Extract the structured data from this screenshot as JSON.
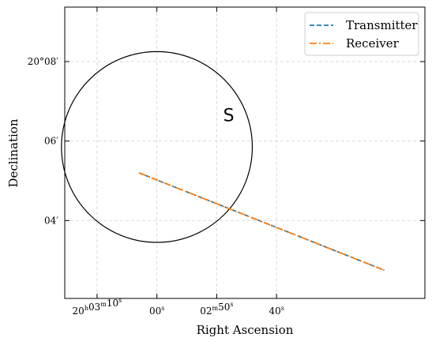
{
  "chart_data": {
    "type": "line",
    "xlabel": "Right Ascension",
    "ylabel": "Declination",
    "xlim_sec": [
      15.4,
      -44.8
    ],
    "ylim_arcmin": [
      -1.96,
      5.37
    ],
    "x_tick_values_sec": [
      10,
      0,
      -10,
      -20
    ],
    "x_ticks": [
      {
        "base": "20",
        "h": "h",
        "m_val": "03",
        "m": "m",
        "s_val": "10",
        "s": "s"
      },
      {
        "base": "",
        "h": "",
        "m_val": "",
        "m": "",
        "s_val": "00",
        "s": "s"
      },
      {
        "base": "",
        "h": "",
        "m_val": "02",
        "m": "m",
        "s_val": "50",
        "s": "s"
      },
      {
        "base": "",
        "h": "",
        "m_val": "",
        "m": "",
        "s_val": "40",
        "s": "s"
      }
    ],
    "y_tick_values_arcmin": [
      4,
      2,
      0
    ],
    "y_ticks": [
      "20°08′",
      "06′",
      "04′"
    ],
    "grid": true,
    "legend_position": "top-right",
    "circle": {
      "center_sec": 0,
      "center_arcmin": 1.85,
      "radius_arcmin": 2.4,
      "color": "#000000"
    },
    "series": [
      {
        "name": "Transmitter",
        "style": "dashed",
        "color": "#1f77b4",
        "x_sec": [
          3,
          -38
        ],
        "y_arcmin": [
          1.2,
          -1.25
        ]
      },
      {
        "name": "Receiver",
        "style": "dashdot",
        "color": "#ff7f0e",
        "x_sec": [
          3,
          -38
        ],
        "y_arcmin": [
          1.2,
          -1.25
        ]
      }
    ],
    "annotations": [
      {
        "text": "S",
        "x_sec": -12.0,
        "y_arcmin": 2.5
      }
    ]
  }
}
